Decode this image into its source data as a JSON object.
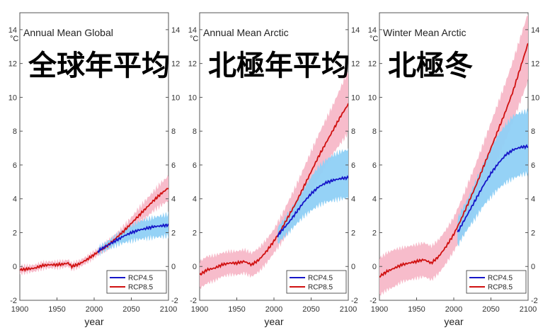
{
  "chart_data": [
    {
      "type": "line",
      "title": "Annual Mean Global",
      "overlay_label": "全球年平均",
      "unit": "°C",
      "xlabel": "year",
      "xlim": [
        1900,
        2100
      ],
      "ylim": [
        -2,
        15
      ],
      "x_ticks": [
        1900,
        1950,
        2000,
        2050,
        2100
      ],
      "y_ticks": [
        -2,
        0,
        2,
        4,
        6,
        8,
        10,
        12,
        14
      ],
      "legend": {
        "position": "bottom-right",
        "entries": [
          "RCP4.5",
          "RCP8.5"
        ]
      },
      "grid": false,
      "series": [
        {
          "name": "RCP4.5",
          "color": "#1515c8",
          "band_color": "#8fd0f5",
          "x": [
            2005,
            2010,
            2020,
            2030,
            2040,
            2050,
            2060,
            2070,
            2080,
            2090,
            2100
          ],
          "y": [
            0.9,
            1.05,
            1.3,
            1.55,
            1.8,
            2.0,
            2.15,
            2.25,
            2.35,
            2.4,
            2.45
          ],
          "lower": [
            0.7,
            0.85,
            1.05,
            1.25,
            1.4,
            1.5,
            1.6,
            1.65,
            1.7,
            1.75,
            1.8
          ],
          "upper": [
            1.1,
            1.25,
            1.55,
            1.85,
            2.15,
            2.45,
            2.65,
            2.8,
            2.9,
            3.0,
            3.1
          ]
        },
        {
          "name": "RCP8.5",
          "color": "#d01010",
          "band_color": "#f7b8c8",
          "x": [
            1900,
            1910,
            1920,
            1930,
            1940,
            1950,
            1960,
            1965,
            1970,
            1980,
            1990,
            2000,
            2010,
            2020,
            2030,
            2040,
            2050,
            2060,
            2070,
            2080,
            2090,
            2100
          ],
          "y": [
            -0.2,
            -0.15,
            -0.1,
            0.05,
            0.1,
            0.1,
            0.15,
            0.2,
            0.0,
            0.15,
            0.4,
            0.7,
            1.0,
            1.3,
            1.7,
            2.1,
            2.55,
            3.0,
            3.45,
            3.9,
            4.3,
            4.65
          ],
          "lower": [
            -0.45,
            -0.35,
            -0.3,
            -0.15,
            -0.1,
            -0.1,
            -0.05,
            0.0,
            -0.2,
            -0.05,
            0.2,
            0.5,
            0.8,
            1.1,
            1.45,
            1.8,
            2.2,
            2.55,
            2.9,
            3.3,
            3.6,
            3.9
          ],
          "upper": [
            0.05,
            0.05,
            0.1,
            0.25,
            0.3,
            0.3,
            0.35,
            0.4,
            0.2,
            0.35,
            0.6,
            0.9,
            1.2,
            1.55,
            1.95,
            2.4,
            2.9,
            3.45,
            3.95,
            4.45,
            4.95,
            5.35
          ]
        }
      ]
    },
    {
      "type": "line",
      "title": "Annual Mean Arctic",
      "overlay_label": "北極年平均",
      "unit": "°C",
      "xlabel": "year",
      "xlim": [
        1900,
        2100
      ],
      "ylim": [
        -2,
        15
      ],
      "x_ticks": [
        1900,
        1950,
        2000,
        2050,
        2100
      ],
      "y_ticks": [
        -2,
        0,
        2,
        4,
        6,
        8,
        10,
        12,
        14
      ],
      "legend": {
        "position": "bottom-right",
        "entries": [
          "RCP4.5",
          "RCP8.5"
        ]
      },
      "grid": false,
      "series": [
        {
          "name": "RCP4.5",
          "color": "#1515c8",
          "band_color": "#8fd0f5",
          "x": [
            2005,
            2010,
            2020,
            2030,
            2040,
            2050,
            2060,
            2070,
            2080,
            2090,
            2100
          ],
          "y": [
            1.8,
            2.1,
            2.6,
            3.2,
            3.8,
            4.3,
            4.7,
            4.95,
            5.1,
            5.2,
            5.25
          ],
          "lower": [
            1.3,
            1.6,
            2.0,
            2.5,
            2.95,
            3.3,
            3.6,
            3.8,
            3.9,
            4.0,
            4.05
          ],
          "upper": [
            2.3,
            2.6,
            3.2,
            3.9,
            4.6,
            5.3,
            5.9,
            6.3,
            6.6,
            6.8,
            6.9
          ]
        },
        {
          "name": "RCP8.5",
          "color": "#d01010",
          "band_color": "#f7b8c8",
          "x": [
            1900,
            1910,
            1920,
            1930,
            1940,
            1950,
            1960,
            1970,
            1980,
            1990,
            2000,
            2010,
            2020,
            2030,
            2040,
            2050,
            2060,
            2070,
            2080,
            2090,
            2100
          ],
          "y": [
            -0.5,
            -0.2,
            -0.1,
            0.1,
            0.2,
            0.2,
            0.3,
            0.1,
            0.4,
            0.9,
            1.5,
            2.2,
            3.0,
            3.8,
            4.7,
            5.6,
            6.5,
            7.3,
            8.1,
            8.9,
            9.6
          ],
          "lower": [
            -1.3,
            -1.0,
            -0.85,
            -0.6,
            -0.5,
            -0.5,
            -0.4,
            -0.6,
            -0.3,
            0.2,
            0.8,
            1.4,
            2.1,
            2.8,
            3.6,
            4.4,
            5.2,
            6.0,
            6.7,
            7.3,
            7.9
          ],
          "upper": [
            0.3,
            0.6,
            0.65,
            0.8,
            0.9,
            0.9,
            1.0,
            0.8,
            1.1,
            1.6,
            2.2,
            3.0,
            3.9,
            4.8,
            5.8,
            6.8,
            7.8,
            8.7,
            9.6,
            10.6,
            11.6
          ]
        }
      ]
    },
    {
      "type": "line",
      "title": "Winter Mean Arctic",
      "overlay_label": "北極冬",
      "unit": "°C",
      "xlabel": "year",
      "xlim": [
        1900,
        2100
      ],
      "ylim": [
        -2,
        15
      ],
      "x_ticks": [
        1900,
        1950,
        2000,
        2050,
        2100
      ],
      "y_ticks": [
        -2,
        0,
        2,
        4,
        6,
        8,
        10,
        12,
        14
      ],
      "legend": {
        "position": "bottom-right",
        "entries": [
          "RCP4.5",
          "RCP8.5"
        ]
      },
      "grid": false,
      "series": [
        {
          "name": "RCP4.5",
          "color": "#1515c8",
          "band_color": "#8fd0f5",
          "x": [
            2005,
            2010,
            2020,
            2030,
            2040,
            2050,
            2060,
            2070,
            2080,
            2090,
            2100
          ],
          "y": [
            2.0,
            2.4,
            3.2,
            4.0,
            4.8,
            5.5,
            6.1,
            6.6,
            6.9,
            7.05,
            7.1
          ],
          "lower": [
            1.2,
            1.6,
            2.3,
            2.9,
            3.6,
            4.1,
            4.6,
            4.95,
            5.2,
            5.4,
            5.5
          ],
          "upper": [
            2.8,
            3.3,
            4.1,
            5.1,
            6.1,
            7.0,
            7.8,
            8.4,
            8.9,
            9.1,
            9.2
          ]
        },
        {
          "name": "RCP8.5",
          "color": "#d01010",
          "band_color": "#f7b8c8",
          "x": [
            1900,
            1910,
            1920,
            1930,
            1940,
            1950,
            1960,
            1970,
            1980,
            1990,
            2000,
            2010,
            2020,
            2030,
            2040,
            2050,
            2060,
            2070,
            2080,
            2090,
            2100
          ],
          "y": [
            -0.6,
            -0.3,
            -0.1,
            0.1,
            0.2,
            0.3,
            0.4,
            0.2,
            0.6,
            1.2,
            1.9,
            2.8,
            3.8,
            4.8,
            5.9,
            7.0,
            8.1,
            9.2,
            10.4,
            11.8,
            13.2
          ],
          "lower": [
            -1.7,
            -1.4,
            -1.2,
            -0.9,
            -0.8,
            -0.7,
            -0.6,
            -0.8,
            -0.4,
            0.2,
            0.9,
            1.7,
            2.6,
            3.5,
            4.5,
            5.5,
            6.5,
            7.5,
            8.6,
            9.8,
            11.0
          ],
          "upper": [
            0.5,
            0.8,
            1.0,
            1.1,
            1.2,
            1.3,
            1.4,
            1.2,
            1.6,
            2.2,
            2.9,
            3.9,
            5.0,
            6.1,
            7.3,
            8.5,
            9.7,
            10.9,
            12.2,
            13.6,
            15.0
          ]
        }
      ]
    }
  ]
}
